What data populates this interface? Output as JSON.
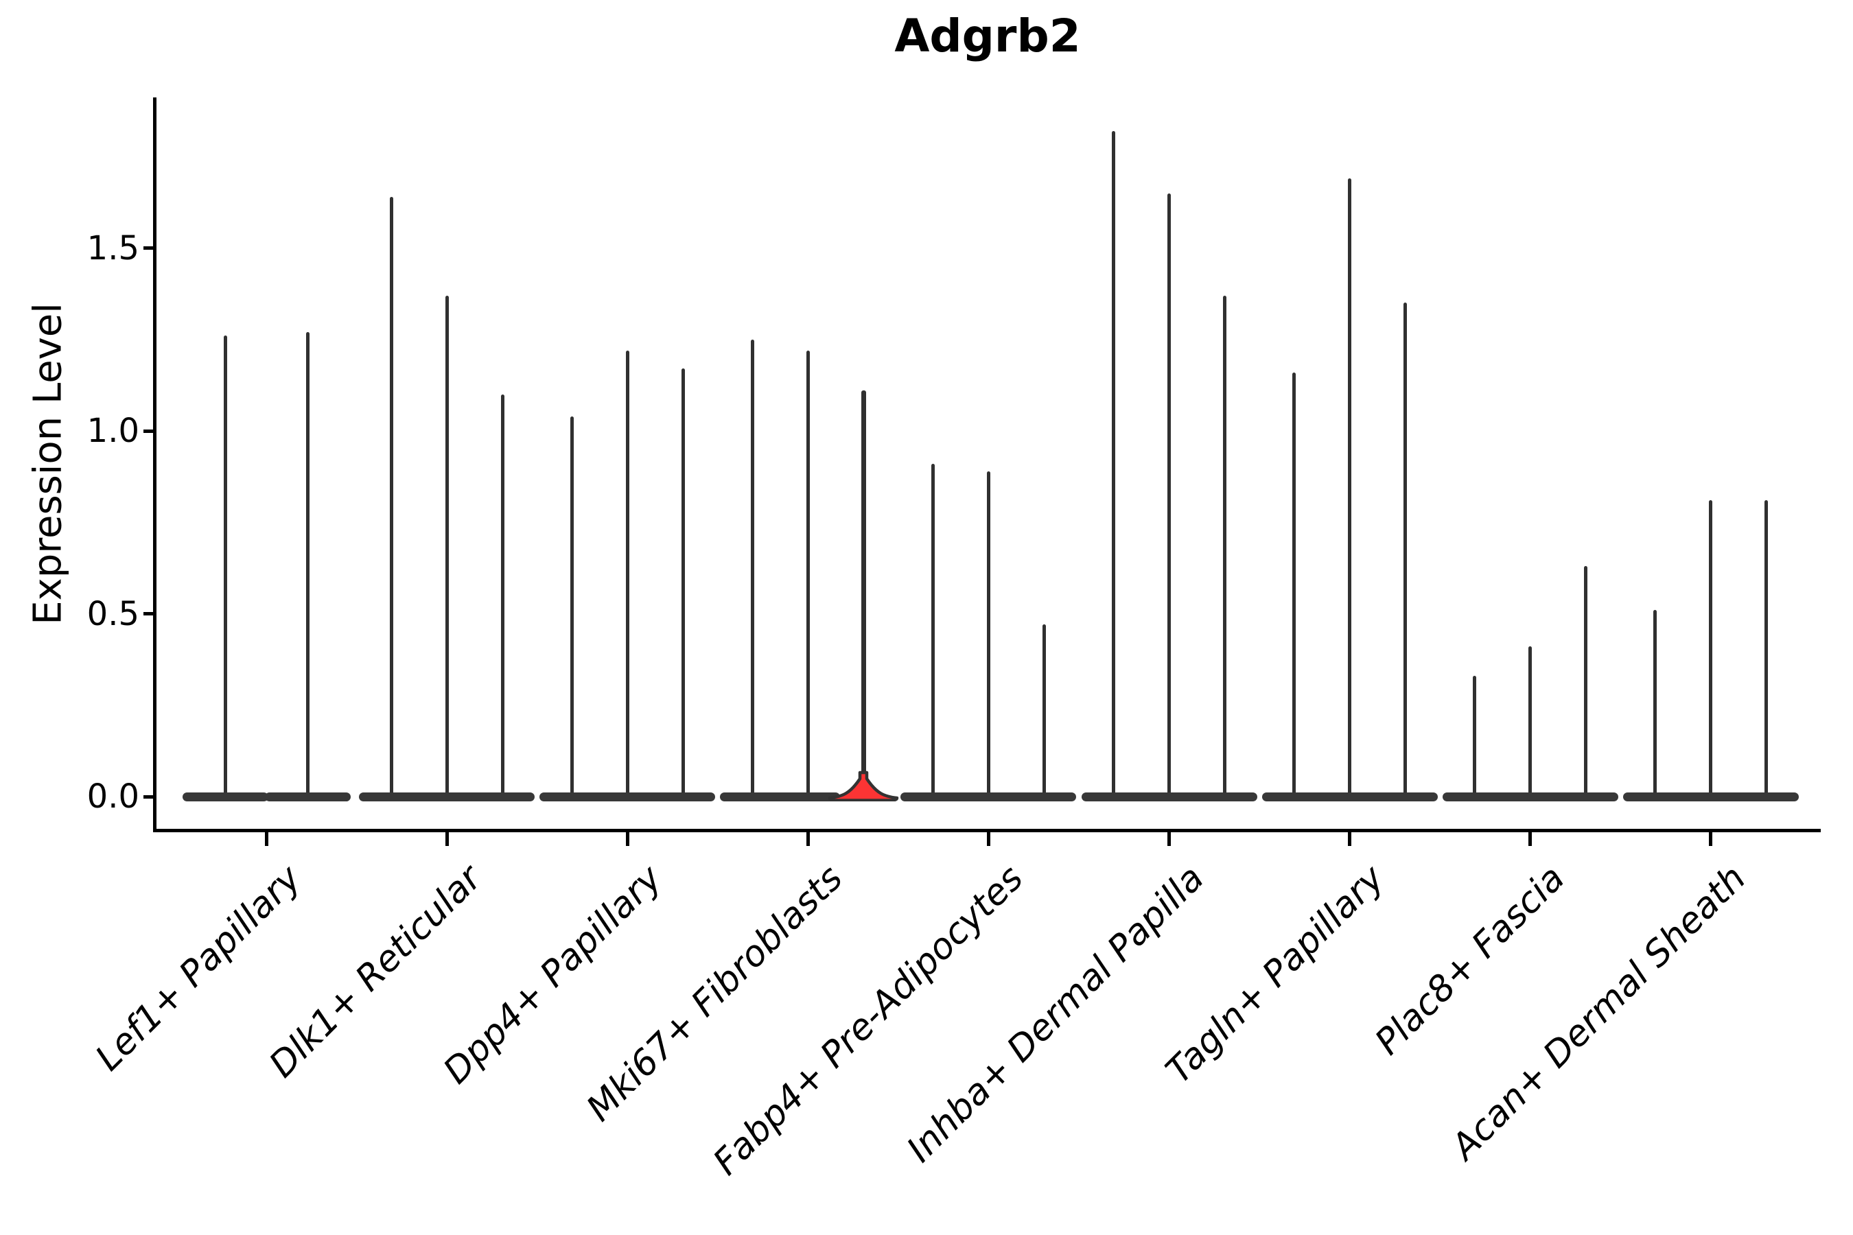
{
  "title": "Adgrb2",
  "ylabel": "Expression Level",
  "chart_data": {
    "type": "violin",
    "title": "Adgrb2",
    "xlabel": "",
    "ylabel": "Expression Level",
    "ylim": [
      -0.09,
      1.92
    ],
    "grid": false,
    "legend": "none",
    "description": "Violin plot of Adgrb2 expression per fibroblast subtype. Each category contains 2-3 needle-thin violins whose density mass sits at 0 (flat dark blobs on the baseline) with thin spikes reaching the maximum expression value. One violin in Mki67+ Fibroblasts is highlighted with a red density bulge near 0.",
    "violin_color": "#303030",
    "highlight_color": "#fb3434",
    "axis_color": "#000000",
    "yticks": [
      {
        "label": "0.0",
        "value": 0.0
      },
      {
        "label": "0.5",
        "value": 0.5
      },
      {
        "label": "1.0",
        "value": 1.0
      },
      {
        "label": "1.5",
        "value": 1.5
      }
    ],
    "groups": [
      {
        "label": "Lef1+ Papillary",
        "violin_max_values": [
          1.26,
          1.27
        ],
        "highlight_index": null
      },
      {
        "label": "Dlk1+ Reticular",
        "violin_max_values": [
          1.64,
          1.37,
          1.1
        ],
        "highlight_index": null
      },
      {
        "label": "Dpp4+ Papillary",
        "violin_max_values": [
          1.04,
          1.22,
          1.17
        ],
        "highlight_index": null
      },
      {
        "label": "Mki67+ Fibroblasts",
        "violin_max_values": [
          1.25,
          1.22,
          1.11
        ],
        "highlight_index": 2,
        "highlight_bulge_max": 0.06
      },
      {
        "label": "Fabp4+ Pre-Adipocytes",
        "violin_max_values": [
          0.91,
          0.89,
          0.47
        ],
        "highlight_index": null
      },
      {
        "label": "Inhba+ Dermal Papilla",
        "violin_max_values": [
          1.82,
          1.65,
          1.37
        ],
        "highlight_index": null
      },
      {
        "label": "Tagln+ Papillary",
        "violin_max_values": [
          1.16,
          1.69,
          1.35
        ],
        "highlight_index": null
      },
      {
        "label": "Plac8+ Fascia",
        "violin_max_values": [
          0.33,
          0.41,
          0.63
        ],
        "highlight_index": null
      },
      {
        "label": "Acan+ Dermal Sheath",
        "violin_max_values": [
          0.51,
          0.81,
          0.81
        ],
        "highlight_index": null
      }
    ]
  }
}
